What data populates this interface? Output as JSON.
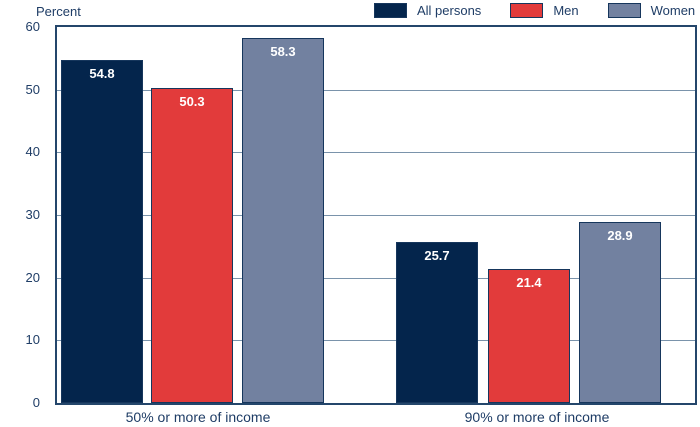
{
  "chart_data": {
    "type": "bar",
    "title": "",
    "ylabel": "Percent",
    "xlabel": "",
    "ylim": [
      0,
      60
    ],
    "yticks": [
      0,
      10,
      20,
      30,
      40,
      50,
      60
    ],
    "grid": "horizontal",
    "legend_position": "top-right",
    "categories": [
      "50% or more of income",
      "90% or more of income"
    ],
    "series": [
      {
        "name": "All persons",
        "color": "#04254c",
        "values": [
          54.8,
          25.7
        ]
      },
      {
        "name": "Men",
        "color": "#e23b3b",
        "values": [
          50.3,
          21.4
        ]
      },
      {
        "name": "Women",
        "color": "#7281a0",
        "values": [
          58.3,
          28.9
        ]
      }
    ],
    "value_labels": [
      "54.8",
      "50.3",
      "58.3",
      "25.7",
      "21.4",
      "28.9"
    ]
  },
  "colors": {
    "background": "#ffffff",
    "text": "#1f3d66",
    "axis_border": "#24466b",
    "gridline": "#7a93ab",
    "bar_border": "#16365c",
    "value_label": "#ffffff"
  }
}
